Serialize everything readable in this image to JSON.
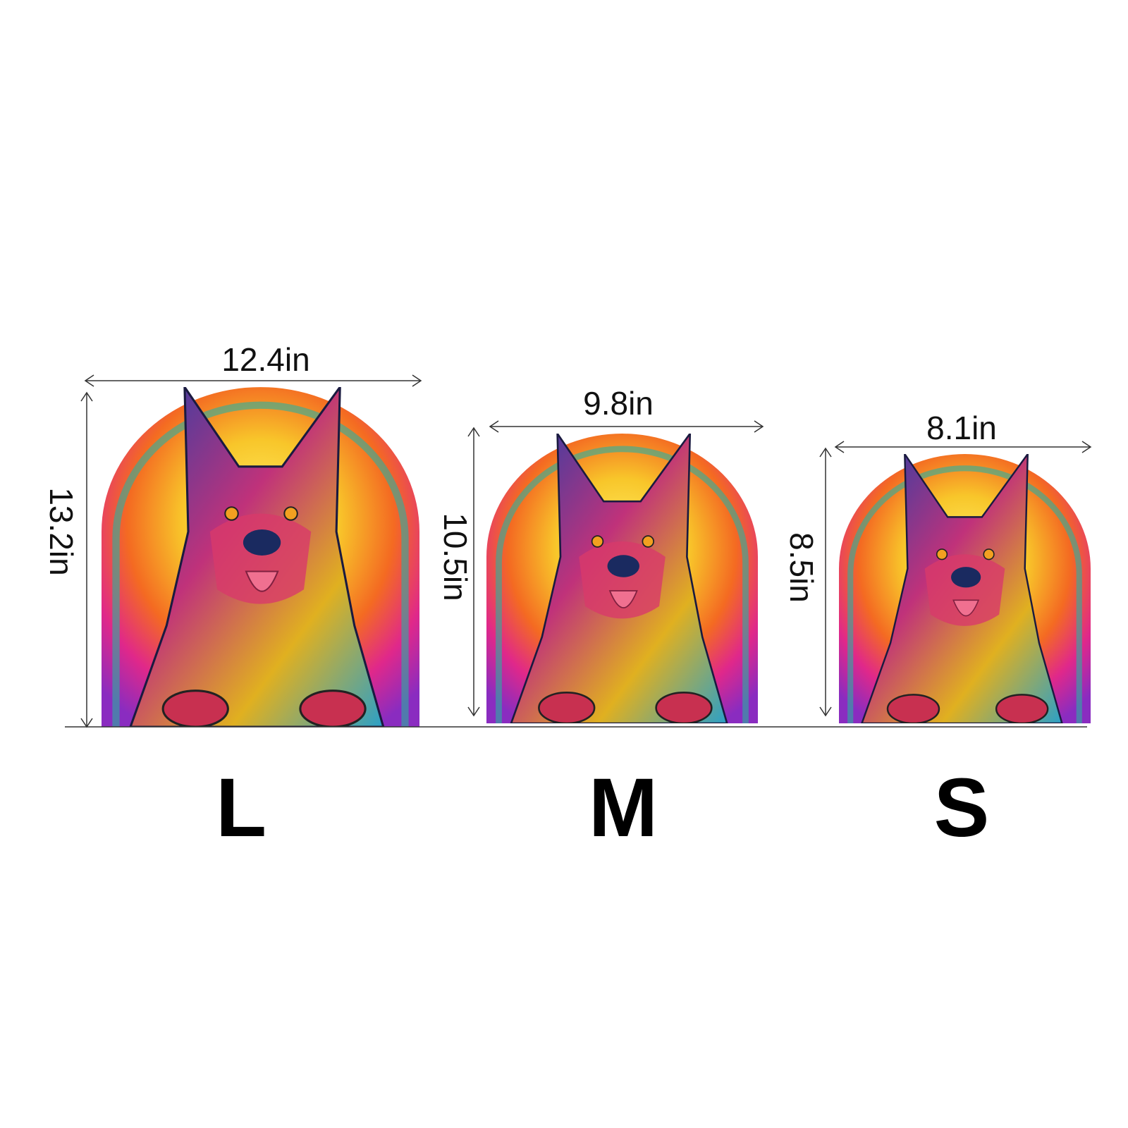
{
  "sizes": [
    {
      "label": "L",
      "width": "12.4in",
      "height": "13.2in"
    },
    {
      "label": "M",
      "width": "9.8in",
      "height": "10.5in"
    },
    {
      "label": "S",
      "width": "8.1in",
      "height": "8.5in"
    }
  ],
  "colors": {
    "line": "#333333",
    "text": "#000000"
  },
  "product_image": "colorful-german-shepherd-puzzle"
}
